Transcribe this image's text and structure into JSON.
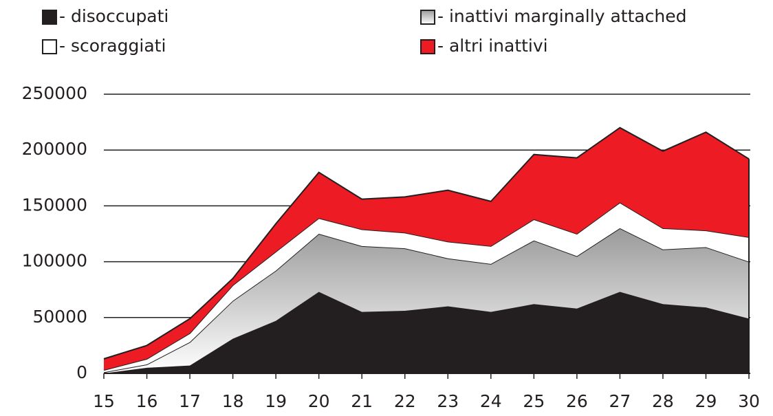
{
  "chart_data": {
    "type": "stacked_area",
    "x": [
      15,
      16,
      17,
      18,
      19,
      20,
      21,
      22,
      23,
      24,
      25,
      26,
      27,
      28,
      29,
      30
    ],
    "xlim": [
      15,
      30
    ],
    "xticks": [
      15,
      16,
      17,
      18,
      19,
      20,
      21,
      22,
      23,
      24,
      25,
      26,
      27,
      28,
      29,
      30
    ],
    "ylim": [
      0,
      250000
    ],
    "yticks": [
      0,
      50000,
      100000,
      150000,
      200000,
      250000
    ],
    "grid": true,
    "series": [
      {
        "name": "- disoccupati",
        "color": "#231f20",
        "values": [
          0,
          5000,
          7000,
          31000,
          47000,
          73000,
          55000,
          56000,
          60000,
          55000,
          62000,
          58000,
          73000,
          62000,
          59000,
          49000
        ]
      },
      {
        "name": "- inattivi marginally attached",
        "color": "#9a9a9a",
        "values": [
          1000,
          3000,
          21000,
          34000,
          45000,
          52000,
          59000,
          56000,
          43000,
          43000,
          57000,
          47000,
          57000,
          49000,
          54000,
          51000
        ]
      },
      {
        "name": "- scoraggiati",
        "color": "#ffffff",
        "values": [
          2000,
          5000,
          8000,
          14000,
          17000,
          14000,
          15000,
          14000,
          15000,
          16000,
          19000,
          20000,
          23000,
          19000,
          15000,
          22000
        ]
      },
      {
        "name": "- altri inattivi",
        "color": "#ed1c24",
        "values": [
          10000,
          12000,
          13000,
          6000,
          25000,
          41000,
          27000,
          32000,
          46000,
          40000,
          58000,
          68000,
          67000,
          69000,
          88000,
          70000
        ]
      }
    ]
  }
}
